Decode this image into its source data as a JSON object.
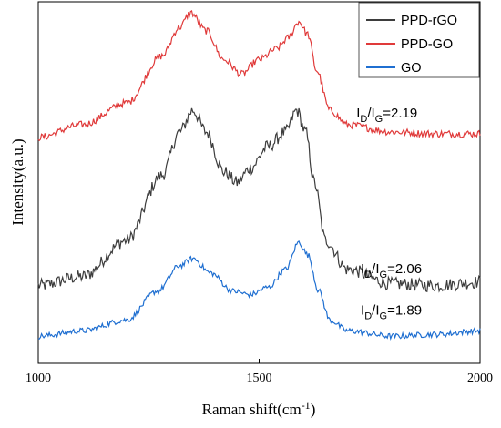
{
  "chart_data": {
    "type": "line",
    "xlabel": "Raman shift(cm",
    "xlabel_sup": "-1",
    "xlabel_tail": ")",
    "ylabel": "Intensity(a.u.)",
    "xlim": [
      1000,
      2000
    ],
    "ylim": [
      0,
      1
    ],
    "x_ticks": [
      1000,
      1500,
      2000
    ],
    "x_tick_labels": [
      "1000",
      "1500",
      "2000"
    ],
    "y_ticks_shown": false,
    "grid": false,
    "legend_position": "top-right",
    "series": [
      {
        "name": "PPD-rGO",
        "color": "#3d3d3d",
        "baseline": 0.22,
        "noise": 0.018,
        "points": [
          [
            1000,
            0.215
          ],
          [
            1100,
            0.24
          ],
          [
            1200,
            0.34
          ],
          [
            1280,
            0.52
          ],
          [
            1320,
            0.64
          ],
          [
            1350,
            0.7
          ],
          [
            1380,
            0.64
          ],
          [
            1420,
            0.53
          ],
          [
            1450,
            0.5
          ],
          [
            1480,
            0.54
          ],
          [
            1520,
            0.6
          ],
          [
            1560,
            0.64
          ],
          [
            1585,
            0.7
          ],
          [
            1605,
            0.64
          ],
          [
            1625,
            0.5
          ],
          [
            1650,
            0.34
          ],
          [
            1700,
            0.26
          ],
          [
            1800,
            0.22
          ],
          [
            1900,
            0.215
          ],
          [
            2000,
            0.225
          ]
        ]
      },
      {
        "name": "PPD-GO",
        "color": "#e03a3a",
        "baseline": 0.63,
        "noise": 0.01,
        "points": [
          [
            1000,
            0.625
          ],
          [
            1100,
            0.66
          ],
          [
            1200,
            0.72
          ],
          [
            1280,
            0.85
          ],
          [
            1320,
            0.93
          ],
          [
            1345,
            0.97
          ],
          [
            1380,
            0.92
          ],
          [
            1420,
            0.84
          ],
          [
            1460,
            0.8
          ],
          [
            1500,
            0.84
          ],
          [
            1540,
            0.87
          ],
          [
            1565,
            0.9
          ],
          [
            1590,
            0.945
          ],
          [
            1610,
            0.91
          ],
          [
            1630,
            0.81
          ],
          [
            1660,
            0.7
          ],
          [
            1700,
            0.66
          ],
          [
            1800,
            0.64
          ],
          [
            1900,
            0.635
          ],
          [
            2000,
            0.635
          ]
        ]
      },
      {
        "name": "GO",
        "color": "#1f6fd1",
        "baseline": 0.08,
        "noise": 0.008,
        "points": [
          [
            1000,
            0.075
          ],
          [
            1100,
            0.09
          ],
          [
            1200,
            0.12
          ],
          [
            1270,
            0.2
          ],
          [
            1320,
            0.27
          ],
          [
            1350,
            0.29
          ],
          [
            1390,
            0.25
          ],
          [
            1440,
            0.2
          ],
          [
            1480,
            0.19
          ],
          [
            1520,
            0.21
          ],
          [
            1560,
            0.26
          ],
          [
            1590,
            0.335
          ],
          [
            1610,
            0.3
          ],
          [
            1635,
            0.2
          ],
          [
            1660,
            0.12
          ],
          [
            1700,
            0.09
          ],
          [
            1800,
            0.075
          ],
          [
            1900,
            0.08
          ],
          [
            2000,
            0.09
          ]
        ]
      }
    ],
    "annotations": [
      {
        "id": "ppd-go",
        "main": "I",
        "sub1": "D",
        "mid": "/I",
        "sub2": "G",
        "value": "=2.19",
        "x": 1720,
        "y": 0.68
      },
      {
        "id": "ppd-rgo",
        "main": "I",
        "sub1": "D",
        "mid": "/I",
        "sub2": "G",
        "value": "=2.06",
        "x": 1730,
        "y": 0.25
      },
      {
        "id": "go",
        "main": "I",
        "sub1": "D",
        "mid": "/I",
        "sub2": "G",
        "value": "=1.89",
        "x": 1730,
        "y": 0.135
      }
    ]
  }
}
